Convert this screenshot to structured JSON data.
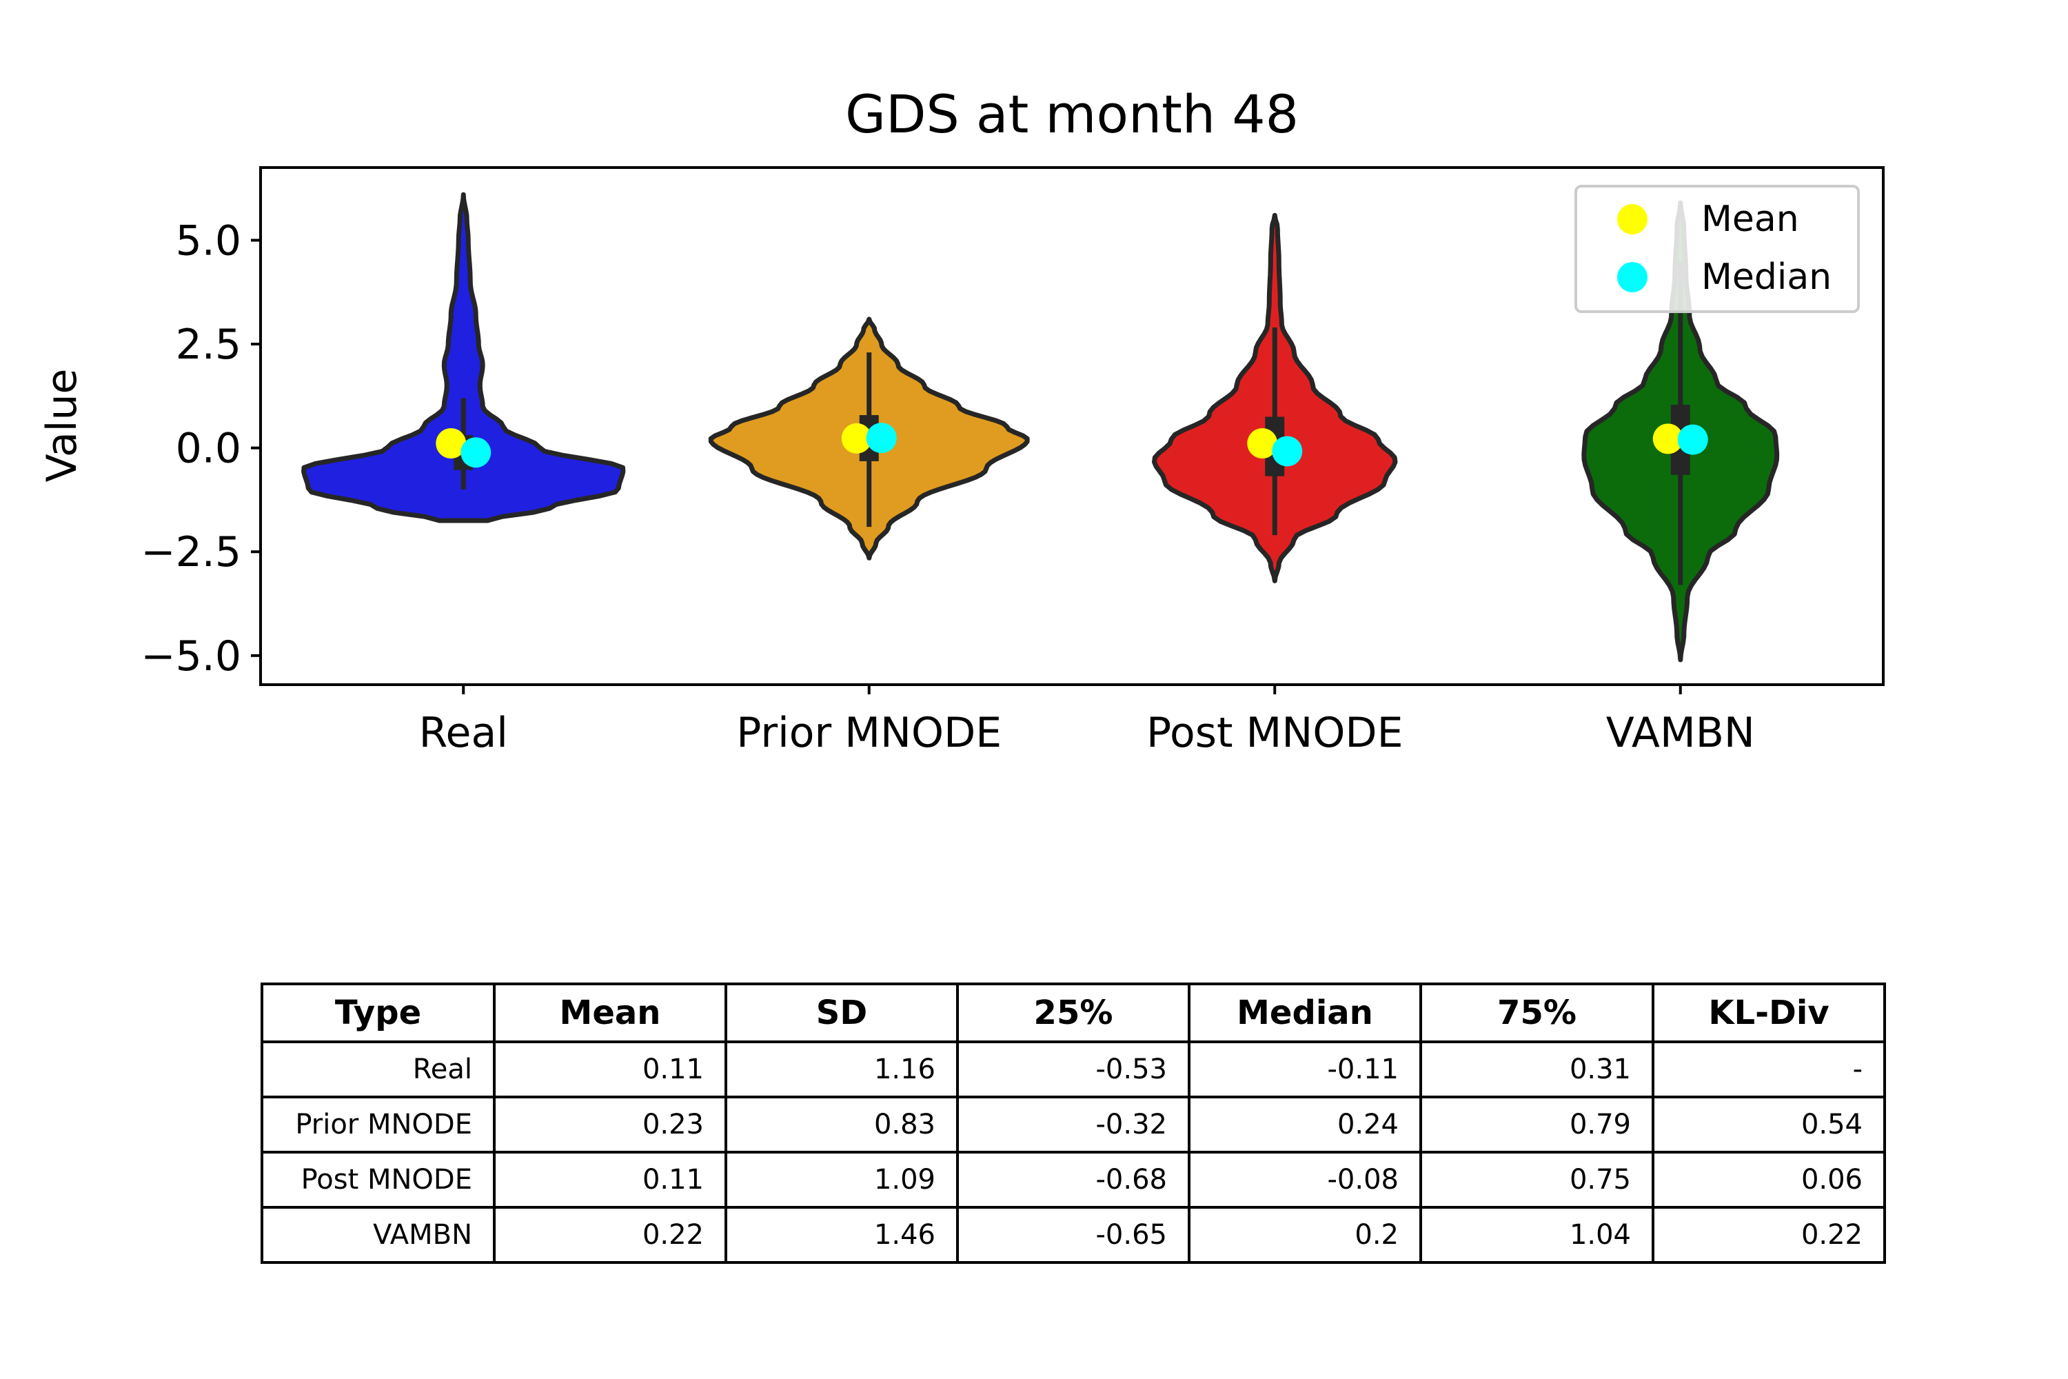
{
  "chart_data": {
    "type": "violin",
    "title": "GDS at month 48",
    "ylabel": "Value",
    "xlabel": "",
    "ylim": [
      -5.7,
      6.75
    ],
    "yticks": [
      5.0,
      2.5,
      0.0,
      -2.5,
      -5.0
    ],
    "ytick_labels": [
      "5.0",
      "2.5",
      "0.0",
      "−2.5",
      "−5.0"
    ],
    "categories": [
      "Real",
      "Prior MNODE",
      "Post MNODE",
      "VAMBN"
    ],
    "series": [
      {
        "name": "Real",
        "color": "#2020e0",
        "mean": 0.11,
        "median": -0.11,
        "q1": -0.53,
        "q3": 0.31,
        "whisker": [
          -1.0,
          1.2
        ],
        "extent": [
          -1.75,
          6.1
        ]
      },
      {
        "name": "Prior MNODE",
        "color": "#e09c20",
        "mean": 0.23,
        "median": 0.24,
        "q1": -0.32,
        "q3": 0.79,
        "whisker": [
          -1.9,
          2.3
        ],
        "extent": [
          -2.65,
          3.1
        ]
      },
      {
        "name": "Post MNODE",
        "color": "#e02020",
        "mean": 0.11,
        "median": -0.08,
        "q1": -0.68,
        "q3": 0.75,
        "whisker": [
          -2.1,
          2.9
        ],
        "extent": [
          -3.2,
          5.6
        ]
      },
      {
        "name": "VAMBN",
        "color": "#0c6c0c",
        "mean": 0.22,
        "median": 0.2,
        "q1": -0.65,
        "q3": 1.04,
        "whisker": [
          -3.3,
          4.5
        ],
        "extent": [
          -5.1,
          5.9
        ]
      }
    ],
    "legend": {
      "location": "upper right",
      "entries": [
        {
          "label": "Mean",
          "color": "#ffff00"
        },
        {
          "label": "Median",
          "color": "#00ffff"
        }
      ]
    }
  },
  "table": {
    "headers": [
      "Type",
      "Mean",
      "SD",
      "25%",
      "Median",
      "75%",
      "KL-Div"
    ],
    "rows": [
      [
        "Real",
        "0.11",
        "1.16",
        "-0.53",
        "-0.11",
        "0.31",
        "-"
      ],
      [
        "Prior MNODE",
        "0.23",
        "0.83",
        "-0.32",
        "0.24",
        "0.79",
        "0.54"
      ],
      [
        "Post MNODE",
        "0.11",
        "1.09",
        "-0.68",
        "-0.08",
        "0.75",
        "0.06"
      ],
      [
        "VAMBN",
        "0.22",
        "1.46",
        "-0.65",
        "0.2",
        "1.04",
        "0.22"
      ]
    ]
  }
}
